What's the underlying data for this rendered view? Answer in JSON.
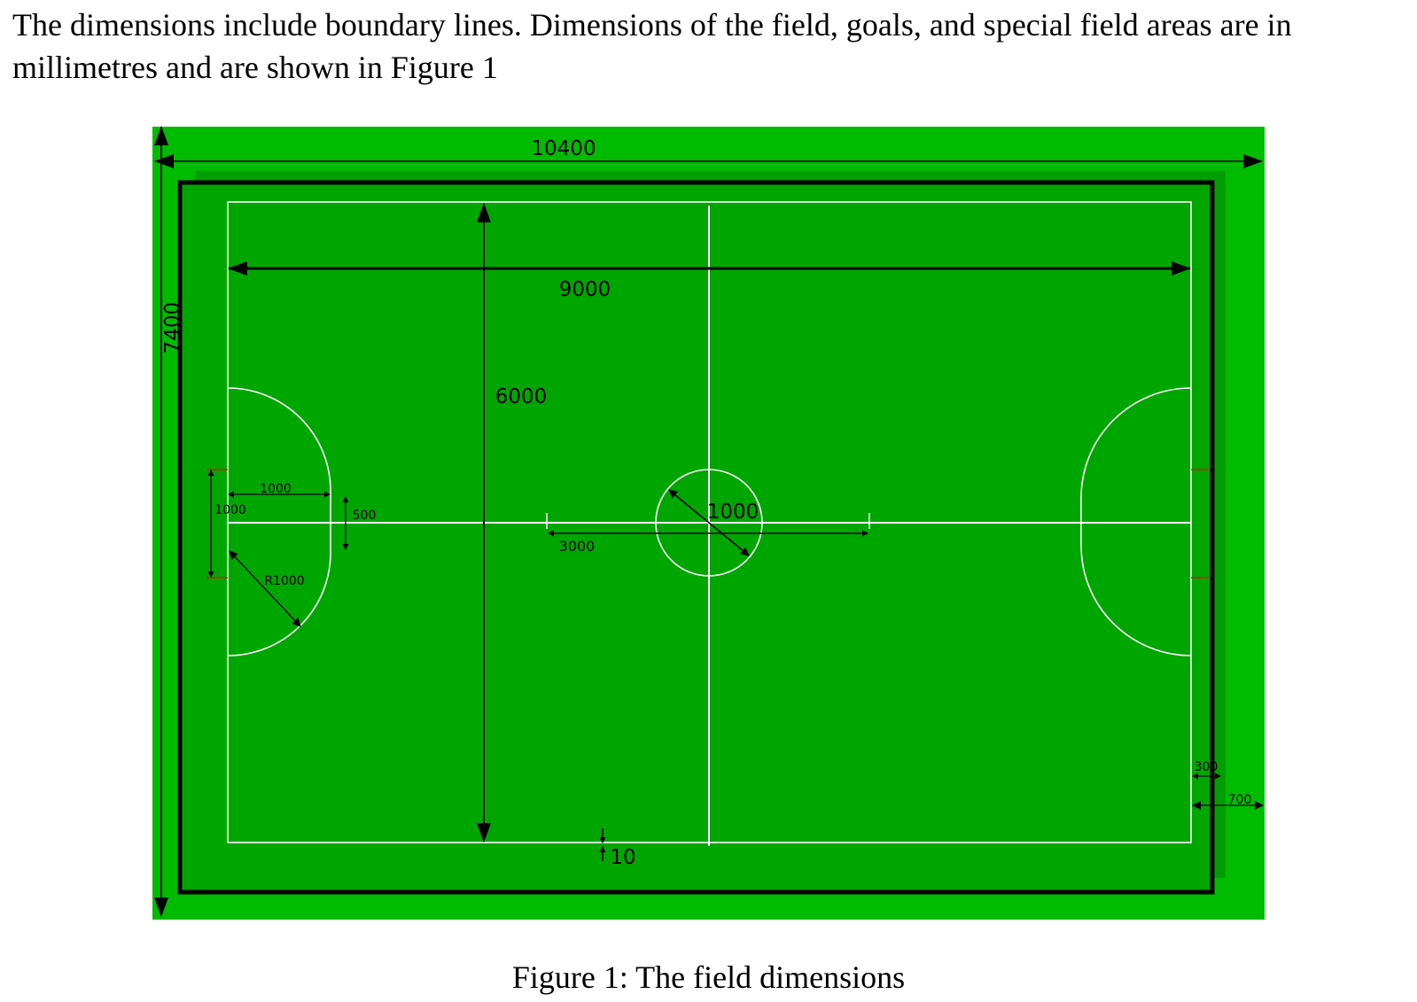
{
  "intro_text": "The dimensions include boundary lines. Dimensions of the field, goals, and special field areas are in millimetres and are shown in Figure 1",
  "caption": "Figure 1: The field dimensions",
  "colors": {
    "outer_green": "#00bb00",
    "inner_green": "#009e00",
    "field_green": "#00a600",
    "border": "#000000",
    "lines": "#ffffff",
    "goal_marks": "#cc2200"
  },
  "figure": {
    "total_width": "10400",
    "total_height": "7400",
    "field_width": "9000",
    "field_height": "6000",
    "center_circle_diameter": "1000",
    "neutral_line_length": "3000",
    "penalty_depth": "1000",
    "goal_width": "1000",
    "penalty_radius": "R1000",
    "penalty_straight": "500",
    "boundary_offset": "300",
    "outer_margin": "700",
    "line_width": "10"
  }
}
